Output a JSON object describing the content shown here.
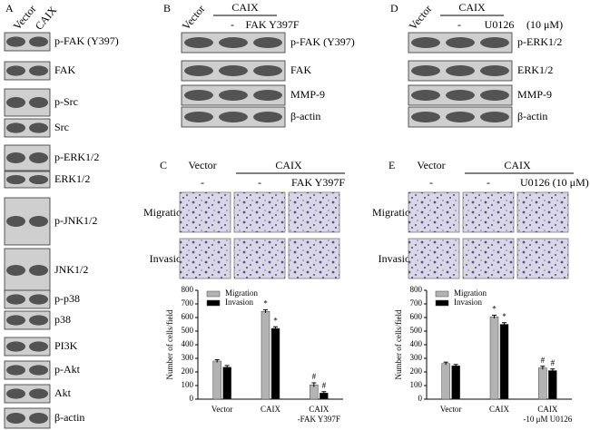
{
  "panel_a": {
    "letter": "A",
    "lanes": [
      "Vector",
      "CAIX"
    ],
    "blots": [
      "p-FAK (Y397)",
      "FAK",
      "p-Src",
      "Src",
      "p-ERK1/2",
      "ERK1/2",
      "p-JNK1/2",
      "JNK1/2",
      "p-p38",
      "p38",
      "PI3K",
      "p-Akt",
      "Akt",
      "β-actin"
    ]
  },
  "panel_b": {
    "letter": "B",
    "vector": "Vector",
    "group": "CAIX",
    "lanes": [
      "-",
      "FAK Y397F"
    ],
    "blots": [
      "p-FAK (Y397)",
      "FAK",
      "MMP-9",
      "β-actin"
    ]
  },
  "panel_d": {
    "letter": "D",
    "vector": "Vector",
    "group": "CAIX",
    "lanes": [
      "-",
      "U0126"
    ],
    "dose": "(10 μM)",
    "blots": [
      "p-ERK1/2",
      "ERK1/2",
      "MMP-9",
      "β-actin"
    ]
  },
  "panel_c": {
    "letter": "C",
    "vector": "Vector",
    "group": "CAIX",
    "lanes": [
      "-",
      "-",
      "FAK Y397F"
    ],
    "rows": [
      "Migration",
      "Invasion"
    ]
  },
  "panel_e": {
    "letter": "E",
    "vector": "Vector",
    "group": "CAIX",
    "lanes": [
      "-",
      "-",
      "U0126 (10 μM)"
    ],
    "rows": [
      "Migration",
      "Invasion"
    ]
  },
  "chart_data": [
    {
      "type": "bar",
      "ylabel": "Number of cells/field",
      "categories": [
        "Vector",
        "CAIX",
        "CAIX\n-FAK Y397F"
      ],
      "series": [
        {
          "name": "Migration",
          "color": "#b3b3b3",
          "values": [
            280,
            645,
            105
          ],
          "errors": [
            10,
            12,
            15
          ],
          "marks": [
            null,
            "*",
            "#"
          ]
        },
        {
          "name": "Invasion",
          "color": "#000000",
          "values": [
            235,
            520,
            45
          ],
          "errors": [
            12,
            12,
            10
          ],
          "marks": [
            null,
            "*",
            "#"
          ]
        }
      ],
      "ylim": [
        0,
        800
      ],
      "yticks": [
        0,
        100,
        200,
        300,
        400,
        500,
        600,
        700,
        800
      ],
      "legend": "upper left"
    },
    {
      "type": "bar",
      "ylabel": "Number of cells/field",
      "categories": [
        "Vector",
        "CAIX",
        "CAIX\n-10 μM U0126"
      ],
      "series": [
        {
          "name": "Migration",
          "color": "#b3b3b3",
          "values": [
            262,
            605,
            230
          ],
          "errors": [
            10,
            12,
            12
          ],
          "marks": [
            null,
            "*",
            "#"
          ]
        },
        {
          "name": "Invasion",
          "color": "#000000",
          "values": [
            245,
            550,
            210
          ],
          "errors": [
            10,
            12,
            12
          ],
          "marks": [
            null,
            "*",
            "#"
          ]
        }
      ],
      "ylim": [
        0,
        800
      ],
      "yticks": [
        0,
        100,
        200,
        300,
        400,
        500,
        600,
        700,
        800
      ],
      "legend": "upper left"
    }
  ]
}
